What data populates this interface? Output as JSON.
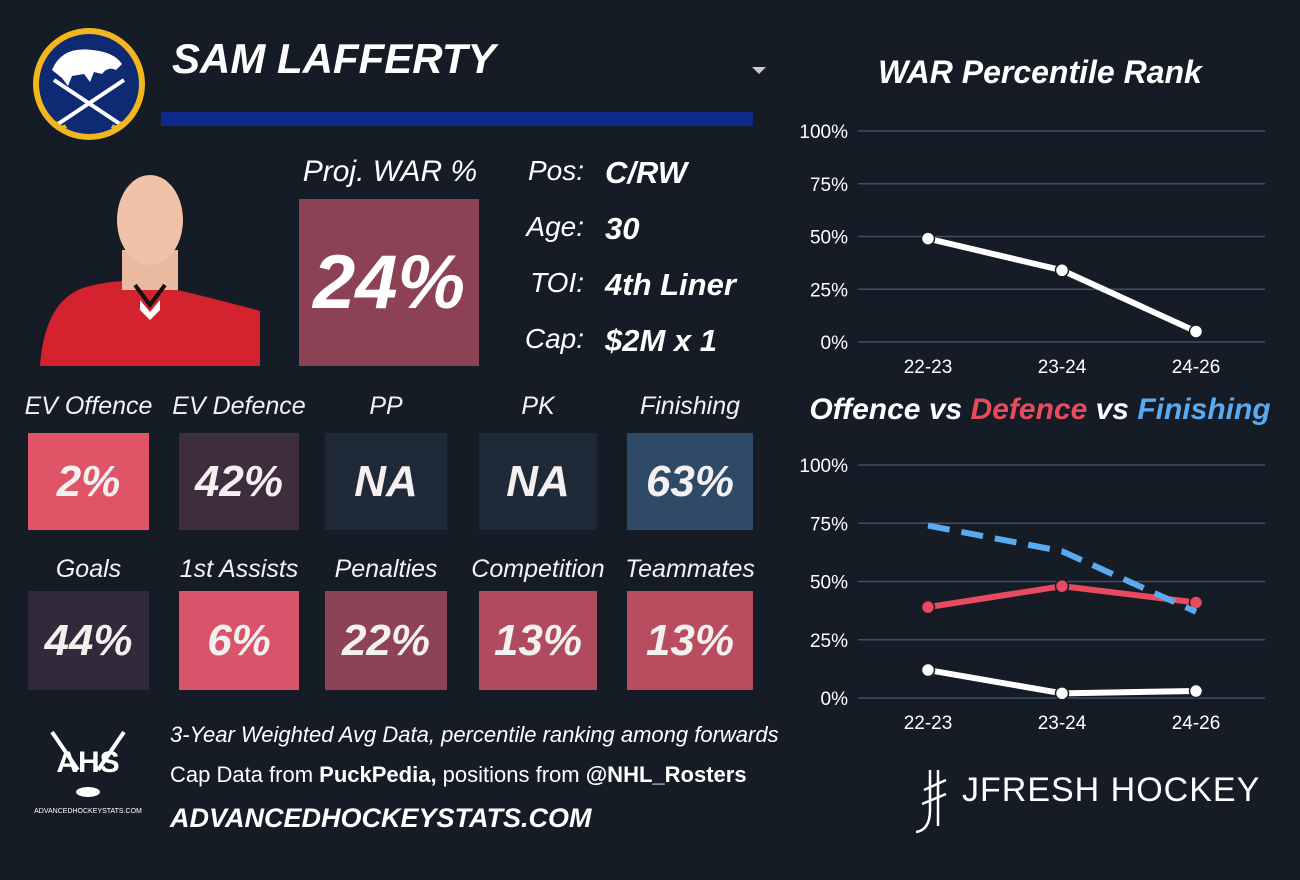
{
  "player": {
    "name": "SAM LAFFERTY",
    "proj_war": {
      "label": "Proj. WAR %",
      "value": "24%",
      "color": "#8c4155"
    },
    "info": [
      {
        "label": "Pos:",
        "value": "C/RW"
      },
      {
        "label": "Age:",
        "value": "30"
      },
      {
        "label": "TOI:",
        "value": "4th Liner"
      },
      {
        "label": "Cap:",
        "value": "$2M x 1"
      }
    ],
    "tiles": [
      [
        {
          "label": "EV Offence",
          "value": "2%",
          "color": "#e05468"
        },
        {
          "label": "EV Defence",
          "value": "42%",
          "color": "#3e2d3d"
        },
        {
          "label": "PP",
          "value": "NA",
          "color": "#1f2a38"
        },
        {
          "label": "PK",
          "value": "NA",
          "color": "#1f2a38"
        },
        {
          "label": "Finishing",
          "value": "63%",
          "color": "#2e4a66"
        }
      ],
      [
        {
          "label": "Goals",
          "value": "44%",
          "color": "#302a3b"
        },
        {
          "label": "1st Assists",
          "value": "6%",
          "color": "#d9546a"
        },
        {
          "label": "Penalties",
          "value": "22%",
          "color": "#8d4258"
        },
        {
          "label": "Competition",
          "value": "13%",
          "color": "#b04a5e"
        },
        {
          "label": "Teammates",
          "value": "13%",
          "color": "#b84d60"
        }
      ]
    ]
  },
  "footer": {
    "line1": "3-Year Weighted Avg Data, percentile ranking among forwards",
    "line2": [
      "Cap Data from ",
      "PuckPedia,",
      " positions from ",
      "@NHL_Rosters"
    ],
    "site": "ADVANCEDHOCKEYSTATS.COM",
    "logo_text": "AHS",
    "logo_sub": "ADVANCEDHOCKEYSTATS.COM",
    "brand": "JFRESH HOCKEY"
  },
  "chart_data": [
    {
      "type": "line",
      "title": "WAR Percentile Rank",
      "categories": [
        "22-23",
        "23-24",
        "24-26"
      ],
      "values": [
        49,
        34,
        5
      ],
      "color": "#ffffff",
      "ylim": [
        0,
        100
      ],
      "yticks": [
        {
          "value": 0,
          "label": "0%"
        },
        {
          "value": 25,
          "label": "25%"
        },
        {
          "value": 50,
          "label": "50%"
        },
        {
          "value": 75,
          "label": "75%"
        },
        {
          "value": 100,
          "label": "100%"
        }
      ],
      "grid": true
    },
    {
      "type": "line",
      "legend_separator": "vs",
      "categories": [
        "22-23",
        "23-24",
        "24-26"
      ],
      "series": [
        {
          "name": "Offence",
          "color": "#ffffff",
          "values": [
            12,
            2,
            3
          ],
          "dashed": false,
          "markers": true
        },
        {
          "name": "Defence",
          "color": "#e84a5f",
          "values": [
            39,
            48,
            41
          ],
          "dashed": false,
          "markers": true
        },
        {
          "name": "Finishing",
          "color": "#5aaaf0",
          "values": [
            74,
            63,
            37
          ],
          "dashed": true,
          "markers": false
        }
      ],
      "ylim": [
        0,
        100
      ],
      "yticks": [
        {
          "value": 0,
          "label": "0%"
        },
        {
          "value": 25,
          "label": "25%"
        },
        {
          "value": 50,
          "label": "50%"
        },
        {
          "value": 75,
          "label": "75%"
        },
        {
          "value": 100,
          "label": "100%"
        }
      ],
      "grid": true
    }
  ]
}
